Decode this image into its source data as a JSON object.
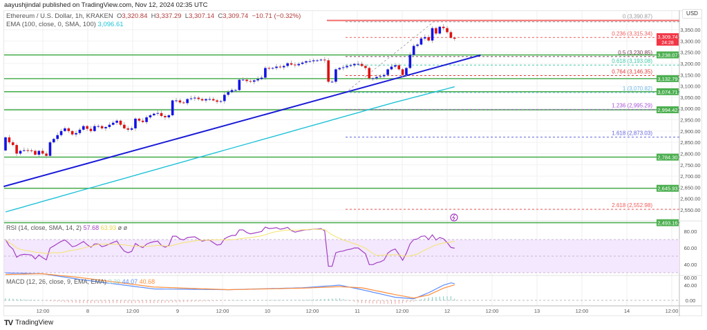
{
  "header": {
    "publisher": "aayushjindal published on TradingView.com, Nov 12, 2024 02:35 UTC"
  },
  "legend": {
    "symbol": "Ethereum / U.S. Dollar, 1h, KRAKEN",
    "o_label": "O",
    "o": "3,320.84",
    "h_label": "H",
    "h": "3,337.29",
    "l_label": "L",
    "l": "3,307.14",
    "c_label": "C",
    "c": "3,309.74",
    "change": "−10.71 (−0.32%)",
    "ema_label": "EMA (100, close, 0, SMA, 100)",
    "ema_value": "3,096.61"
  },
  "colors": {
    "up": "#1212e6",
    "down": "#e01010",
    "support": "#4caf50",
    "trendline": "#1a1ad8",
    "ema": "#1fc2d8",
    "rsi": "#a33ec2",
    "rsi_ma": "#f5e36b",
    "macd": "#5b8cff",
    "signal": "#ff8c3a",
    "price_tag": "#f23645"
  },
  "price_axis": {
    "currency": "USD",
    "ticks": [
      "3,350.00",
      "3,300.00",
      "3,250.00",
      "3,200.00",
      "3,150.00",
      "3,100.00",
      "3,050.00",
      "3,000.00",
      "2,950.00",
      "2,900.00",
      "2,850.00",
      "2,800.00",
      "2,750.00",
      "2,700.00",
      "2,650.00",
      "2,600.00",
      "2,550.00"
    ],
    "tick_values": [
      3350,
      3300,
      3250,
      3200,
      3150,
      3100,
      3050,
      3000,
      2950,
      2900,
      2850,
      2800,
      2750,
      2700,
      2650,
      2600,
      2550
    ],
    "current_price": "3,309.74",
    "current_value": 3309.74,
    "countdown": "24:28"
  },
  "time_axis": {
    "labels": [
      "12:00",
      "8",
      "12:00",
      "9",
      "12:00",
      "10",
      "12:00",
      "11",
      "12:00",
      "12",
      "12:00",
      "13",
      "12:00",
      "14",
      "12:00"
    ]
  },
  "support_levels": [
    {
      "value": 3238.07,
      "label": "3,238.07"
    },
    {
      "value": 3132.79,
      "label": "3,132.79"
    },
    {
      "value": 3074.71,
      "label": "3,074.71"
    },
    {
      "value": 2994.42,
      "label": "2,994.42"
    },
    {
      "value": 2784.3,
      "label": "2,784.30"
    },
    {
      "value": 2645.93,
      "label": "2,645.93"
    },
    {
      "value": 2493.16,
      "label": "2,493.16"
    }
  ],
  "fib_levels": [
    {
      "value": 3390.87,
      "label": "0 (3,390.87)",
      "color": "#9a9aa0"
    },
    {
      "value": 3315.34,
      "label": "0.236 (3,315.34)",
      "color": "#f05a5a"
    },
    {
      "value": 3230.85,
      "label": "0.5 (3,230.85)",
      "color": "#7a3f5a"
    },
    {
      "value": 3193.08,
      "label": "0.618 (3,193.08)",
      "color": "#3fc9a8"
    },
    {
      "value": 3146.35,
      "label": "0.764 (3,146.35)",
      "color": "#e53935"
    },
    {
      "value": 3070.82,
      "label": "1 (3,070.82)",
      "color": "#6cb6e8"
    },
    {
      "value": 2995.29,
      "label": "1.236 (2,995.29)",
      "color": "#a64fd6"
    },
    {
      "value": 2873.03,
      "label": "1.618 (2,873.03)",
      "color": "#6262e0"
    },
    {
      "value": 2552.98,
      "label": "2.618 (2,552.98)",
      "color": "#f05a5a"
    }
  ],
  "chart_data": {
    "type": "candlestick",
    "first_open": 2814,
    "closes": [
      2872,
      2850,
      2838,
      2800,
      2812,
      2815,
      2814,
      2812,
      2795,
      2812,
      2800,
      2790,
      2850,
      2865,
      2882,
      2900,
      2912,
      2900,
      2885,
      2891,
      2906,
      2922,
      2910,
      2900,
      2922,
      2922,
      2912,
      2918,
      2928,
      2937,
      2946,
      2928,
      2912,
      2906,
      2912,
      2955,
      2946,
      2940,
      2961,
      2970,
      2977,
      2980,
      2967,
      2961,
      2970,
      3036,
      3036,
      3027,
      3024,
      3042,
      3045,
      3048,
      3042,
      3036,
      3042,
      3042,
      3036,
      3030,
      3033,
      3061,
      3073,
      3082,
      3082,
      3128,
      3128,
      3122,
      3119,
      3125,
      3131,
      3137,
      3180,
      3177,
      3180,
      3186,
      3183,
      3189,
      3201,
      3195,
      3192,
      3198,
      3204,
      3210,
      3210,
      3214,
      3214,
      3217,
      3214,
      3119,
      3119,
      3174,
      3180,
      3183,
      3189,
      3192,
      3198,
      3198,
      3189,
      3180,
      3134,
      3134,
      3140,
      3143,
      3149,
      3174,
      3186,
      3192,
      3174,
      3149,
      3180,
      3238,
      3278,
      3284,
      3311,
      3317,
      3302,
      3357,
      3333,
      3363,
      3357,
      3339,
      3314,
      3309.74
    ],
    "ema100": {
      "index": [
        0,
        21,
        62,
        105,
        121
      ],
      "value": [
        2541,
        2639,
        2829,
        3028,
        3096.61
      ]
    },
    "trendline": {
      "index": [
        -0.5,
        128
      ],
      "value": [
        2654,
        3237
      ]
    },
    "ylim": [
      2480,
      3400
    ]
  },
  "rsi": {
    "label": "RSI (14, close, SMA, 14, 2)",
    "value": "57.68",
    "ma_value": "63.93",
    "extra": "ø ø",
    "ticks": [
      "80.00",
      "60.00",
      "40.00"
    ],
    "tick_values": [
      80,
      60,
      40
    ],
    "band": [
      30,
      70
    ]
  },
  "macd": {
    "label": "MACD (12, 26, close, 9, EMA, EMA)",
    "hist_value": "3.39",
    "macd_value": "44.07",
    "signal_value": "40.68",
    "ticks": [
      "60.00",
      "40.00",
      "0.00"
    ],
    "tick_values": [
      60,
      40,
      0
    ],
    "macd_line": {
      "index": [
        0,
        10,
        20,
        40,
        60,
        80,
        90,
        96,
        105,
        110,
        114,
        118,
        120,
        121
      ],
      "value": [
        72,
        70,
        55,
        30,
        28,
        33,
        40,
        28,
        8,
        4,
        20,
        40,
        46,
        44.07
      ]
    },
    "signal_line": {
      "index": [
        0,
        10,
        20,
        40,
        60,
        80,
        90,
        96,
        105,
        110,
        114,
        118,
        121
      ],
      "value": [
        68,
        70,
        60,
        35,
        28,
        32,
        36,
        33,
        15,
        6,
        14,
        32,
        40.68
      ]
    }
  },
  "brand": {
    "name": "TradingView"
  }
}
